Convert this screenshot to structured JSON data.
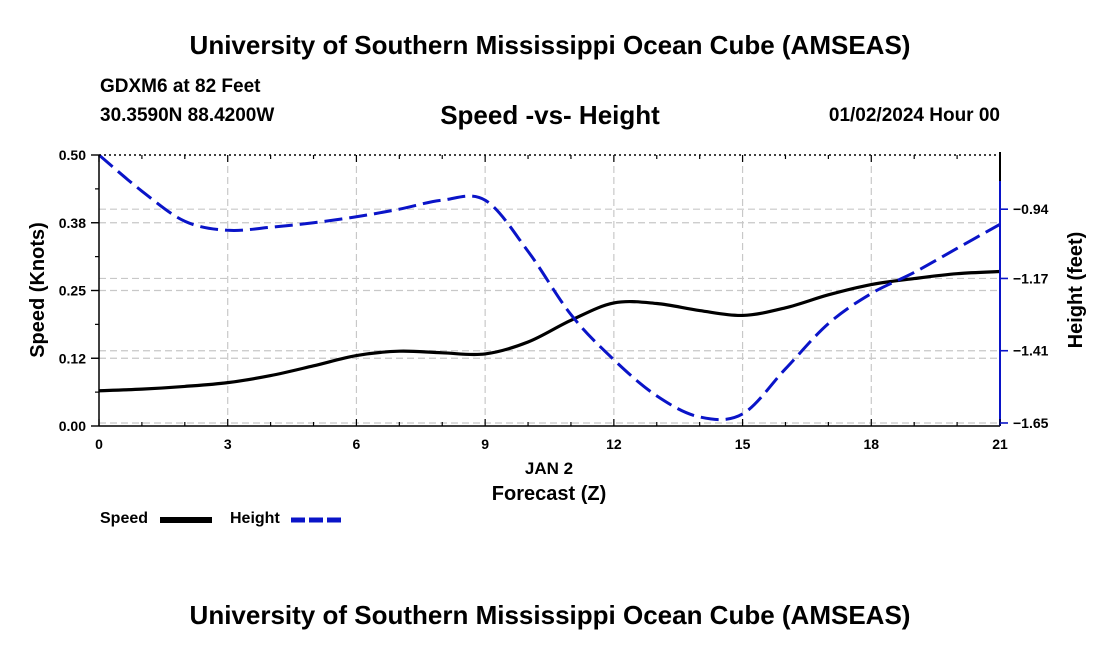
{
  "header": {
    "title": "University of Southern Mississippi Ocean Cube (AMSEAS)",
    "station": "GDXM6 at 82 Feet",
    "location": "30.3590N  88.4200W",
    "datetime": "01/02/2024 Hour 00"
  },
  "footer": {
    "title": "University of Southern Mississippi Ocean Cube (AMSEAS)"
  },
  "legend": {
    "speed_label": "Speed",
    "height_label": "Height"
  },
  "colors": {
    "speed": "#000000",
    "height": "#0a14c8",
    "grid": "#c8c8c8"
  },
  "chart_data": {
    "type": "line",
    "title": "Speed -vs- Height",
    "xlabel": "Forecast (Z)",
    "xlabel_date": "JAN 2",
    "ylabel": "Speed (Knots)",
    "y2label": "Height (feet)",
    "xlim": [
      0,
      21
    ],
    "ylim": [
      0,
      0.5
    ],
    "y2lim": [
      -1.66,
      -0.76
    ],
    "x_ticks": [
      0,
      3,
      6,
      9,
      12,
      15,
      18,
      21
    ],
    "x_tick_labels": [
      "0",
      "3",
      "6",
      "9",
      "12",
      "15",
      "18",
      "21"
    ],
    "y_ticks": [
      0.0,
      0.125,
      0.25,
      0.375,
      0.5
    ],
    "y_tick_labels": [
      "0.00",
      "0.12",
      "0.25",
      "0.38",
      "0.50"
    ],
    "y2_ticks": [
      -1.65,
      -1.41,
      -1.17,
      -0.94
    ],
    "y2_tick_labels": [
      "−1.65",
      "−1.41",
      "−1.17",
      "−0.94"
    ],
    "series": [
      {
        "name": "Speed",
        "axis": "left",
        "style": "solid",
        "x": [
          0,
          1,
          2,
          3,
          4,
          5,
          6,
          7,
          8,
          9,
          10,
          11,
          12,
          13,
          14,
          15,
          16,
          17,
          18,
          19,
          20,
          21
        ],
        "values": [
          0.065,
          0.068,
          0.073,
          0.08,
          0.093,
          0.111,
          0.13,
          0.138,
          0.135,
          0.133,
          0.155,
          0.195,
          0.227,
          0.226,
          0.213,
          0.204,
          0.218,
          0.242,
          0.261,
          0.272,
          0.281,
          0.285
        ]
      },
      {
        "name": "Height",
        "axis": "right",
        "style": "dashed",
        "x": [
          0,
          1,
          2,
          3,
          4,
          5,
          6,
          7,
          8,
          9,
          10,
          11,
          12,
          13,
          14,
          15,
          16,
          17,
          18,
          19,
          20,
          21
        ],
        "values": [
          -0.76,
          -0.88,
          -0.98,
          -1.01,
          -1.0,
          -0.985,
          -0.965,
          -0.94,
          -0.91,
          -0.91,
          -1.08,
          -1.29,
          -1.44,
          -1.56,
          -1.63,
          -1.62,
          -1.47,
          -1.32,
          -1.22,
          -1.15,
          -1.07,
          -0.99
        ]
      }
    ]
  }
}
